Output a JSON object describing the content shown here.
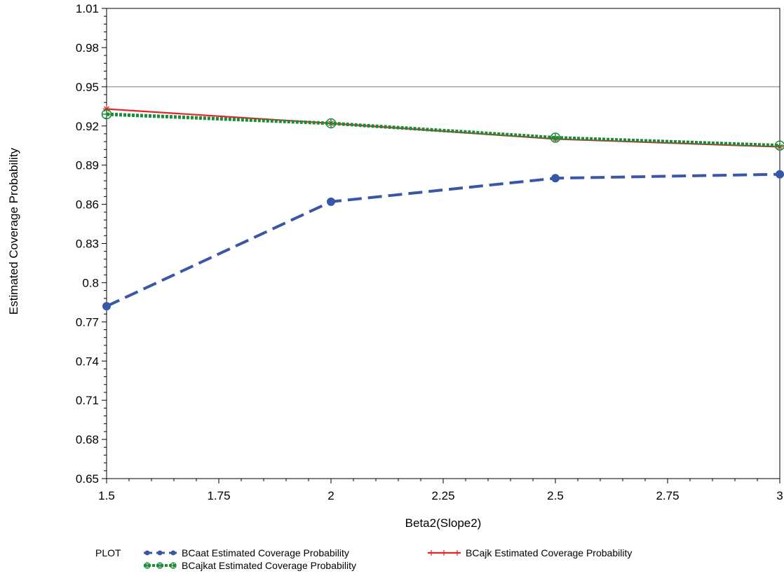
{
  "chart_data": {
    "type": "line",
    "xlabel": "Beta2(Slope2)",
    "ylabel": "Estimated Coverage Probability",
    "x": [
      1.5,
      2,
      2.5,
      3
    ],
    "xlim": [
      1.5,
      3
    ],
    "ylim": [
      0.65,
      1.01
    ],
    "x_ticks": [
      "1.5",
      "1.75",
      "2",
      "2.25",
      "2.5",
      "2.75",
      "3"
    ],
    "y_ticks": [
      "0.65",
      "0.68",
      "0.71",
      "0.74",
      "0.77",
      "0.8",
      "0.83",
      "0.86",
      "0.89",
      "0.92",
      "0.95",
      "0.98",
      "1.01"
    ],
    "reference_line": 0.95,
    "legend_title": "PLOT",
    "legend_position": "bottom",
    "series": [
      {
        "name": "BCaat Estimated Coverage Probability",
        "values": [
          0.782,
          0.862,
          0.88,
          0.883
        ],
        "color": "#3a57a7",
        "style": "dashed",
        "marker": "dot"
      },
      {
        "name": "BCajk Estimated Coverage Probability",
        "values": [
          0.933,
          0.922,
          0.91,
          0.904
        ],
        "color": "#e3262a",
        "style": "solid",
        "marker": "star"
      },
      {
        "name": "BCajkat Estimated Coverage Probability",
        "values": [
          0.929,
          0.922,
          0.911,
          0.905
        ],
        "color": "#1d8c3a",
        "style": "dotted",
        "marker": "circle-plus"
      }
    ]
  }
}
